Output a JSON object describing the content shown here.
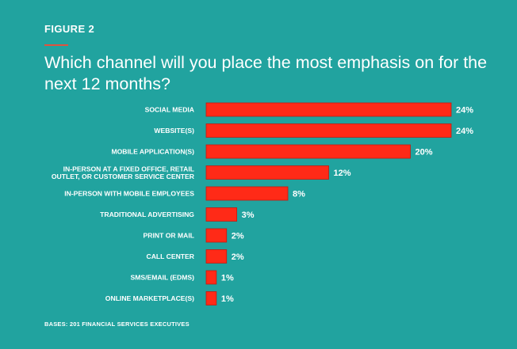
{
  "figure_label": "FIGURE 2",
  "bases": "BASES: 201 FINANCIAL SERVICES EXECUTIVES",
  "colors": {
    "background": "#21a39f",
    "bar": "#ff2a17",
    "bar_edge": "#c21a10",
    "accent_rule": "#e1523d"
  },
  "chart_data": {
    "type": "bar",
    "orientation": "horizontal",
    "title": "Which channel will you place the most emphasis on for the next 12 months?",
    "categories": [
      [
        "SOCIAL MEDIA"
      ],
      [
        "WEBSITE(S)"
      ],
      [
        "MOBILE APPLICATION(S)"
      ],
      [
        "IN-PERSON AT A FIXED OFFICE, RETAIL",
        "OUTLET, OR CUSTOMER SERVICE CENTER"
      ],
      [
        "IN-PERSON WITH MOBILE EMPLOYEES"
      ],
      [
        "TRADITIONAL ADVERTISING"
      ],
      [
        "PRINT OR MAIL"
      ],
      [
        "CALL CENTER"
      ],
      [
        "SMS/EMAIL (EDMS)"
      ],
      [
        "ONLINE MARKETPLACE(S)"
      ]
    ],
    "values": [
      24,
      24,
      20,
      12,
      8,
      3,
      2,
      2,
      1,
      1
    ],
    "data_labels": [
      "24%",
      "24%",
      "20%",
      "12%",
      "8%",
      "3%",
      "2%",
      "2%",
      "1%",
      "1%"
    ],
    "xlim": [
      0,
      24
    ],
    "grid": false,
    "legend": false
  }
}
